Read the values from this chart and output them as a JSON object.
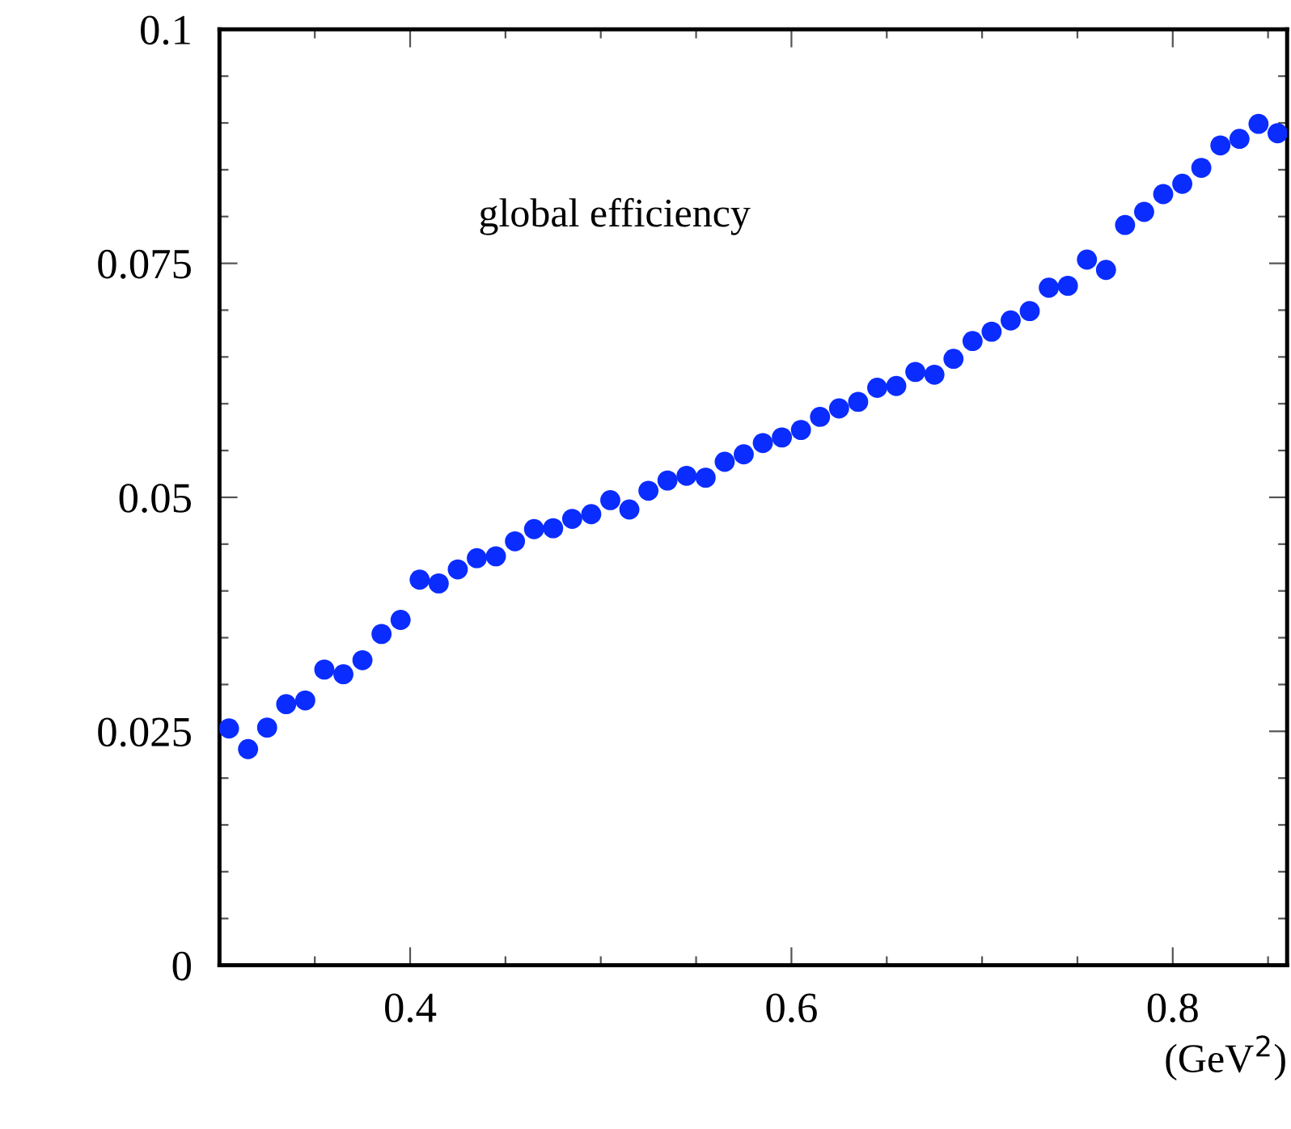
{
  "chart_data": {
    "type": "scatter",
    "xlabel": "(GeV$^{2}$)",
    "annotations": [
      "global efficiency"
    ],
    "x": [
      0.305,
      0.315,
      0.325,
      0.335,
      0.345,
      0.355,
      0.365,
      0.375,
      0.385,
      0.395,
      0.405,
      0.415,
      0.425,
      0.435,
      0.445,
      0.455,
      0.465,
      0.475,
      0.485,
      0.495,
      0.505,
      0.515,
      0.525,
      0.535,
      0.545,
      0.555,
      0.565,
      0.575,
      0.585,
      0.595,
      0.605,
      0.615,
      0.625,
      0.635,
      0.645,
      0.655,
      0.665,
      0.675,
      0.685,
      0.695,
      0.705,
      0.715,
      0.725,
      0.735,
      0.745,
      0.755,
      0.765,
      0.775,
      0.785,
      0.795,
      0.805,
      0.815,
      0.825,
      0.835,
      0.845,
      0.855
    ],
    "series": [
      {
        "color": "#0a2cff",
        "values": [
          0.0253,
          0.0231,
          0.0254,
          0.0279,
          0.0283,
          0.0316,
          0.0311,
          0.0326,
          0.0354,
          0.0369,
          0.0412,
          0.0408,
          0.0423,
          0.0435,
          0.0437,
          0.0453,
          0.0466,
          0.0467,
          0.0477,
          0.0482,
          0.0497,
          0.0487,
          0.0507,
          0.0518,
          0.0523,
          0.0521,
          0.0538,
          0.0546,
          0.0558,
          0.0564,
          0.0572,
          0.0586,
          0.0595,
          0.0602,
          0.0617,
          0.0619,
          0.0634,
          0.0631,
          0.0648,
          0.0667,
          0.0677,
          0.0689,
          0.0699,
          0.0724,
          0.0726,
          0.0754,
          0.0743,
          0.0791,
          0.0805,
          0.0824,
          0.0835,
          0.0852,
          0.0876,
          0.0883,
          0.0899,
          0.0889
        ]
      }
    ],
    "marker": "circle",
    "xlim": [
      0.3,
      0.86
    ],
    "xticks": [
      {
        "value": 0.3,
        "label": null
      },
      {
        "value": 0.35,
        "label": null
      },
      {
        "value": 0.4,
        "label": "0.4"
      },
      {
        "value": 0.45,
        "label": null
      },
      {
        "value": 0.5,
        "label": null
      },
      {
        "value": 0.55,
        "label": null
      },
      {
        "value": 0.6,
        "label": "0.6"
      },
      {
        "value": 0.65,
        "label": null
      },
      {
        "value": 0.7,
        "label": null
      },
      {
        "value": 0.75,
        "label": null
      },
      {
        "value": 0.8,
        "label": "0.8"
      },
      {
        "value": 0.85,
        "label": null
      }
    ],
    "ylim": [
      0,
      0.1
    ],
    "yticks": [
      0,
      {
        "value": 0.005,
        "label": null
      },
      {
        "value": 0.01,
        "label": null
      },
      {
        "value": 0.015,
        "label": null
      },
      {
        "value": 0.02,
        "label": null
      },
      0.025,
      {
        "value": 0.03,
        "label": null
      },
      {
        "value": 0.035,
        "label": null
      },
      {
        "value": 0.04,
        "label": null
      },
      {
        "value": 0.045,
        "label": null
      },
      0.05,
      {
        "value": 0.055,
        "label": null
      },
      {
        "value": 0.06,
        "label": null
      },
      {
        "value": 0.065,
        "label": null
      },
      {
        "value": 0.07,
        "label": null
      },
      0.075,
      {
        "value": 0.08,
        "label": null
      },
      {
        "value": 0.085,
        "label": null
      },
      {
        "value": 0.09,
        "label": null
      },
      {
        "value": 0.095,
        "label": null
      },
      0.1
    ],
    "grid": false,
    "legend": false
  }
}
